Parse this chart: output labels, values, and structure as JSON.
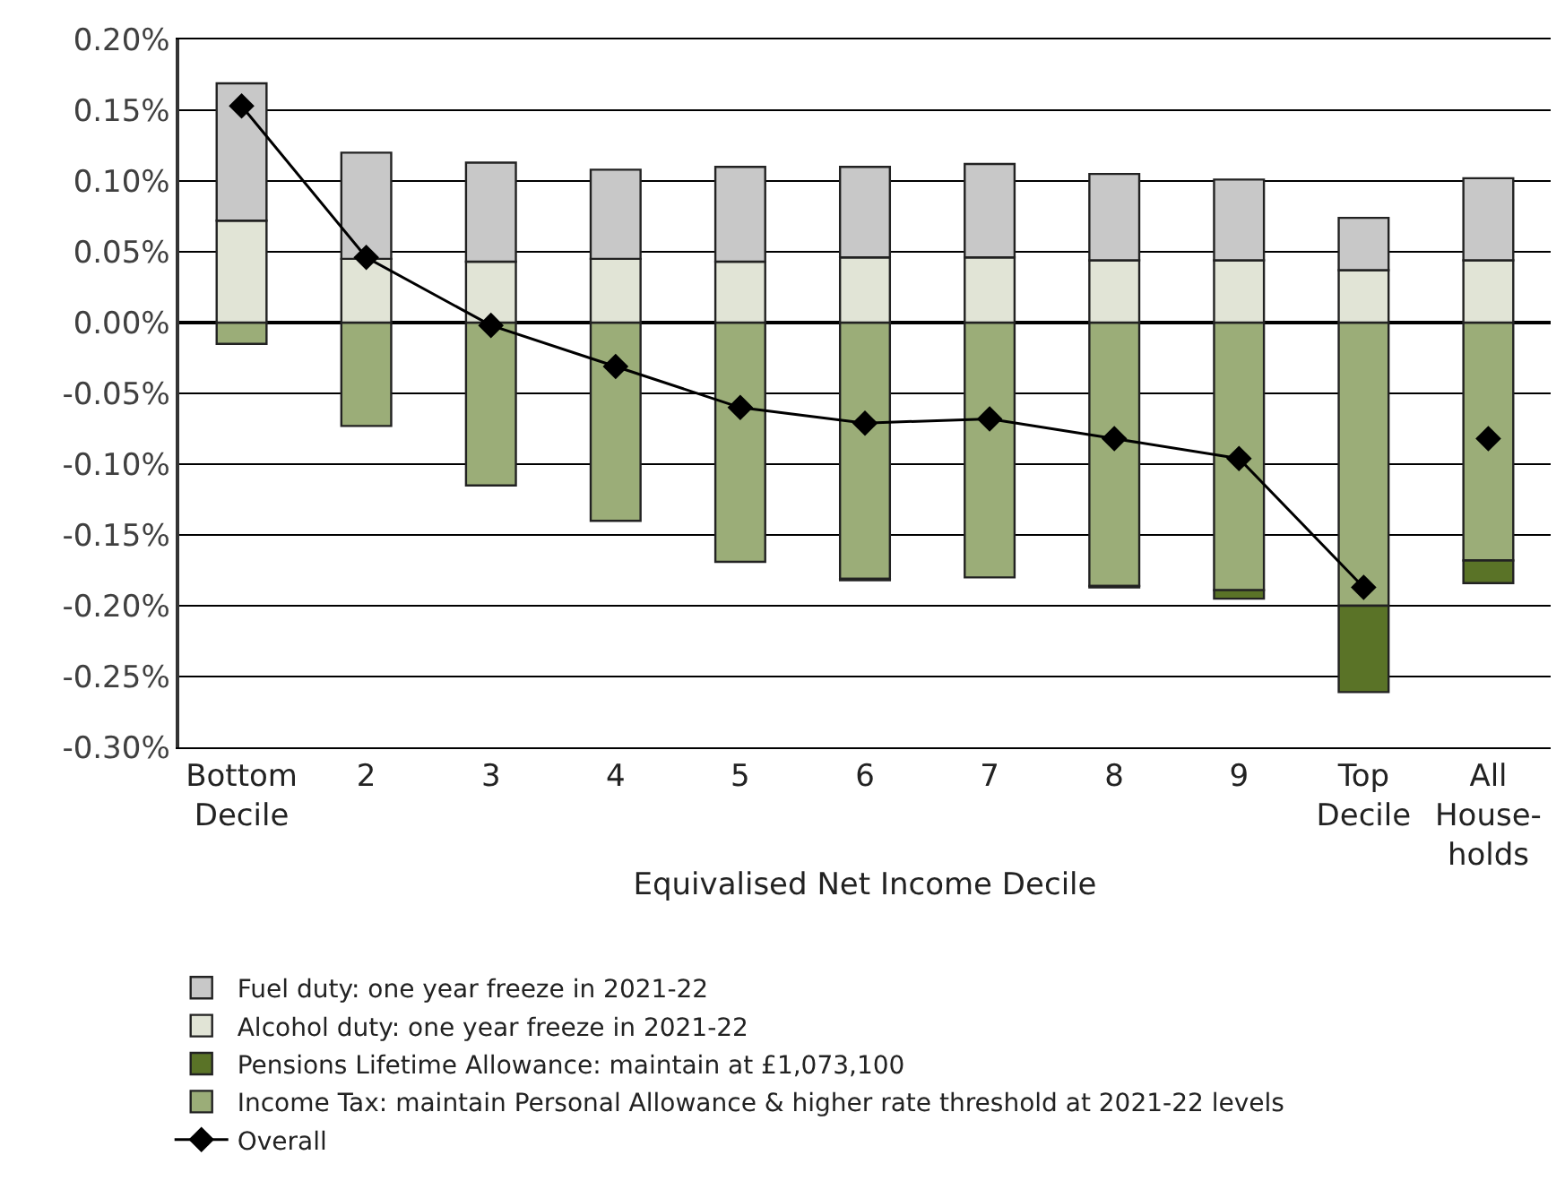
{
  "chart_data": {
    "type": "bar",
    "stacked": true,
    "xlabel": "Equivalised Net Income Decile",
    "categories": [
      "Bottom\nDecile",
      "2",
      "3",
      "4",
      "5",
      "6",
      "7",
      "8",
      "9",
      "Top\nDecile",
      "All\nHouse-\nholds"
    ],
    "series": [
      {
        "name": "Income Tax: maintain Personal Allowance & higher rate threshold at 2021-22 levels",
        "color": "#9bad78",
        "values": [
          -0.015,
          -0.073,
          -0.115,
          -0.14,
          -0.169,
          -0.181,
          -0.18,
          -0.186,
          -0.189,
          -0.2,
          -0.168
        ]
      },
      {
        "name": "Pensions Lifetime Allowance: maintain at £1,073,100",
        "color": "#5a7327",
        "values": [
          null,
          null,
          null,
          null,
          null,
          -0.001,
          null,
          -0.001,
          -0.006,
          -0.061,
          -0.016
        ]
      },
      {
        "name": "Alcohol duty: one year freeze in 2021-22",
        "color": "#e1e4d6",
        "values": [
          0.072,
          0.045,
          0.043,
          0.045,
          0.043,
          0.046,
          0.046,
          0.044,
          0.044,
          0.037,
          0.044
        ]
      },
      {
        "name": "Fuel duty: one year freeze in 2021-22",
        "color": "#c8c8c8",
        "values": [
          0.097,
          0.075,
          0.07,
          0.063,
          0.067,
          0.064,
          0.066,
          0.061,
          0.057,
          0.037,
          0.058
        ]
      },
      {
        "name": "Overall",
        "type": "line",
        "color": "#000000",
        "marker": "diamond",
        "values": [
          0.153,
          0.046,
          -0.002,
          -0.031,
          -0.06,
          -0.071,
          -0.068,
          -0.082,
          -0.096,
          -0.187,
          null
        ]
      },
      {
        "type": "scatter",
        "color": "#000000",
        "marker": "diamond",
        "values": [
          null,
          null,
          null,
          null,
          null,
          null,
          null,
          null,
          null,
          null,
          -0.082
        ]
      }
    ],
    "ylim": [
      -0.3,
      0.2
    ],
    "yticks": [
      {
        "value": 0.2,
        "label": "0.20%"
      },
      {
        "value": 0.15,
        "label": "0.15%"
      },
      {
        "value": 0.1,
        "label": "0.10%"
      },
      {
        "value": 0.05,
        "label": "0.05%"
      },
      {
        "value": 0.0,
        "label": "0.00%"
      },
      {
        "value": -0.05,
        "label": "-0.05%"
      },
      {
        "value": -0.1,
        "label": "-0.10%"
      },
      {
        "value": -0.15,
        "label": "-0.15%"
      },
      {
        "value": -0.2,
        "label": "-0.20%"
      },
      {
        "value": -0.25,
        "label": "-0.25%"
      },
      {
        "value": -0.3,
        "label": "-0.30%"
      }
    ],
    "grid": "y",
    "legend": "bottom"
  }
}
